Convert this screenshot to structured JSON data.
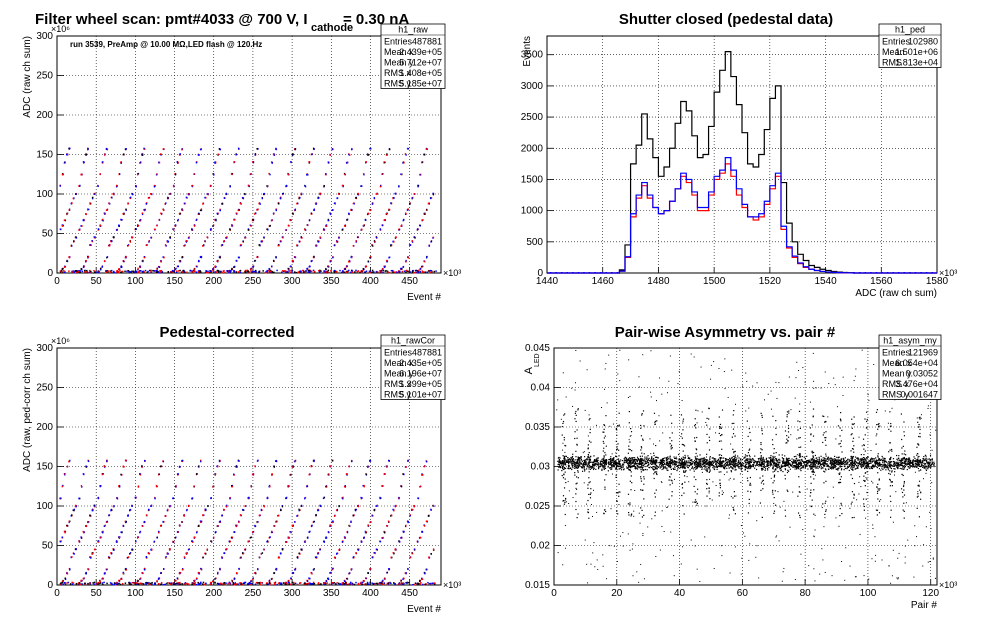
{
  "panels": [
    {
      "id": "raw",
      "title_main": "Filter wheel scan: pmt#4033 @   700 V, I",
      "title_sub": "cathode",
      "title_tail": "   = 0.30 nA",
      "annotation": "run 3539, PreAmp @ 10.00 MΩ,LED flash @  120.Hz",
      "stats": {
        "name": "h1_raw",
        "rows": [
          [
            "Entries",
            "487881"
          ],
          [
            "Mean x",
            "2.439e+05"
          ],
          [
            "Mean y",
            "5.712e+07"
          ],
          [
            "RMS x",
            "1.408e+05"
          ],
          [
            "RMS y",
            "5.185e+07"
          ]
        ]
      },
      "xlabel": "Event #",
      "ylabel": "ADC (raw ch sum)",
      "x_exp": "×10³",
      "y_exp": "×10⁶",
      "xticks": [
        "0",
        "50",
        "100",
        "150",
        "200",
        "250",
        "300",
        "350",
        "400",
        "450"
      ],
      "yticks": [
        "0",
        "50",
        "100",
        "150",
        "200",
        "250",
        "300"
      ]
    },
    {
      "id": "ped",
      "title": "Shutter closed (pedestal data)",
      "stats": {
        "name": "h1_ped",
        "rows": [
          [
            "Entries",
            "102980"
          ],
          [
            "Mean",
            "1.501e+06"
          ],
          [
            "RMS",
            "1.813e+04"
          ]
        ]
      },
      "xlabel": "ADC (raw ch sum)",
      "ylabel": "Events",
      "x_exp": "×10³",
      "xticks": [
        "1440",
        "1460",
        "1480",
        "1500",
        "1520",
        "1540",
        "1560",
        "1580"
      ],
      "yticks": [
        "0",
        "500",
        "1000",
        "1500",
        "2000",
        "2500",
        "3000",
        "3500"
      ]
    },
    {
      "id": "rawcor",
      "title": "Pedestal-corrected",
      "stats": {
        "name": "h1_rawCor",
        "rows": [
          [
            "Entries",
            "487881"
          ],
          [
            "Mean x",
            "2.435e+05"
          ],
          [
            "Mean y",
            "6.196e+07"
          ],
          [
            "RMS x",
            "1.399e+05"
          ],
          [
            "RMS y",
            "5.101e+07"
          ]
        ]
      },
      "xlabel": "Event #",
      "ylabel": "ADC (raw, ped-corr ch sum)",
      "x_exp": "×10³",
      "y_exp": "×10⁶",
      "xticks": [
        "0",
        "50",
        "100",
        "150",
        "200",
        "250",
        "300",
        "350",
        "400",
        "450"
      ],
      "yticks": [
        "0",
        "50",
        "100",
        "150",
        "200",
        "250",
        "300"
      ]
    },
    {
      "id": "asym",
      "title": "Pair-wise Asymmetry vs. pair #",
      "stats": {
        "name": "h1_asym_my",
        "rows": [
          [
            "Entries",
            "121969"
          ],
          [
            "Mean x",
            "6.054e+04"
          ],
          [
            "Mean y",
            "0.03052"
          ],
          [
            "RMS x",
            "3.476e+04"
          ],
          [
            "RMS y",
            "0.001647"
          ]
        ]
      },
      "xlabel": "Pair #",
      "ylabel_main": "A",
      "ylabel_sub": "LED",
      "x_exp": "×10³",
      "xticks": [
        "0",
        "20",
        "40",
        "60",
        "80",
        "100",
        "120"
      ],
      "yticks": [
        "0.015",
        "0.02",
        "0.025",
        "0.03",
        "0.035",
        "0.04",
        "0.045"
      ]
    }
  ],
  "chart_data": [
    {
      "type": "scatter",
      "title": "Filter wheel scan: pmt#4033 @   700 V, I cathode = 0.30 nA",
      "xlabel": "Event #",
      "ylabel": "ADC (raw ch sum)",
      "x_units_scale": "×10³",
      "y_units_scale": "×10⁶",
      "xlim": [
        0,
        490
      ],
      "ylim": [
        0,
        300
      ],
      "grid": true,
      "scan_period_x": 24,
      "scan_start_x": 3,
      "level_y": [
        2,
        5,
        8,
        15,
        20,
        35,
        40,
        45,
        55,
        60,
        67,
        75,
        80,
        88,
        95,
        100,
        110,
        125,
        140,
        150,
        157
      ],
      "colors": [
        "#0000ff",
        "#ff0000",
        "#000000"
      ]
    },
    {
      "type": "line",
      "title": "Shutter closed (pedestal data)",
      "xlabel": "ADC (raw ch sum)",
      "ylabel": "Events",
      "x_units_scale": "×10³",
      "xlim": [
        1440,
        1580
      ],
      "ylim": [
        0,
        3800
      ],
      "grid": true,
      "x": [
        1466,
        1468,
        1470,
        1472,
        1474,
        1476,
        1478,
        1480,
        1482,
        1484,
        1486,
        1488,
        1490,
        1492,
        1494,
        1496,
        1498,
        1500,
        1502,
        1504,
        1506,
        1508,
        1510,
        1512,
        1514,
        1516,
        1518,
        1520,
        1522,
        1524,
        1526,
        1528,
        1530,
        1532,
        1534,
        1536,
        1538,
        1540,
        1542,
        1544,
        1546,
        1548
      ],
      "series": [
        {
          "color": "#000000",
          "values": [
            50,
            450,
            1750,
            2050,
            2550,
            2150,
            1850,
            1550,
            1700,
            2000,
            2400,
            2750,
            2600,
            2200,
            1850,
            1900,
            2350,
            2900,
            3250,
            3550,
            3150,
            2700,
            2250,
            1750,
            1700,
            1900,
            2300,
            2800,
            3000,
            1450,
            800,
            500,
            300,
            200,
            120,
            90,
            60,
            40,
            25,
            15,
            8,
            4
          ]
        },
        {
          "color": "#ff0000",
          "values": [
            30,
            250,
            900,
            1200,
            1400,
            1200,
            1050,
            950,
            1000,
            1150,
            1350,
            1550,
            1450,
            1250,
            1000,
            1000,
            1250,
            1500,
            1600,
            1750,
            1550,
            1250,
            1050,
            900,
            850,
            900,
            1100,
            1350,
            1550,
            700,
            400,
            250,
            150,
            90,
            60,
            40,
            25,
            15,
            10,
            6,
            3,
            2
          ]
        },
        {
          "color": "#0000ff",
          "values": [
            30,
            260,
            950,
            1250,
            1450,
            1250,
            1050,
            950,
            1000,
            1150,
            1350,
            1600,
            1500,
            1300,
            1050,
            1050,
            1300,
            1550,
            1650,
            1850,
            1650,
            1350,
            1100,
            900,
            900,
            950,
            1150,
            1400,
            1600,
            750,
            420,
            270,
            160,
            100,
            60,
            40,
            25,
            15,
            10,
            6,
            3,
            2
          ]
        }
      ]
    },
    {
      "type": "scatter",
      "title": "Pedestal-corrected",
      "xlabel": "Event #",
      "ylabel": "ADC (raw, ped-corr ch sum)",
      "x_units_scale": "×10³",
      "y_units_scale": "×10⁶",
      "xlim": [
        0,
        490
      ],
      "ylim": [
        0,
        300
      ],
      "grid": true,
      "scan_period_x": 24,
      "scan_start_x": 3,
      "level_y": [
        2,
        5,
        8,
        15,
        20,
        35,
        40,
        45,
        55,
        60,
        67,
        75,
        80,
        88,
        95,
        100,
        110,
        125,
        140,
        150,
        157
      ],
      "colors": [
        "#0000ff",
        "#ff0000",
        "#000000"
      ]
    },
    {
      "type": "scatter",
      "title": "Pair-wise Asymmetry vs. pair #",
      "xlabel": "Pair #",
      "ylabel": "A LED",
      "x_units_scale": "×10³",
      "xlim": [
        0,
        122
      ],
      "ylim": [
        0.015,
        0.045
      ],
      "grid": true,
      "band_center_y": 0.0305,
      "band_halfwidth_y": 0.0006,
      "spike_x": [
        3,
        7,
        11,
        16,
        20,
        24,
        28,
        32,
        37,
        41,
        45,
        49,
        53,
        57,
        62,
        66,
        70,
        74,
        78,
        82,
        86,
        91,
        95,
        99,
        103,
        107,
        111,
        116
      ],
      "color": "#000000"
    }
  ]
}
